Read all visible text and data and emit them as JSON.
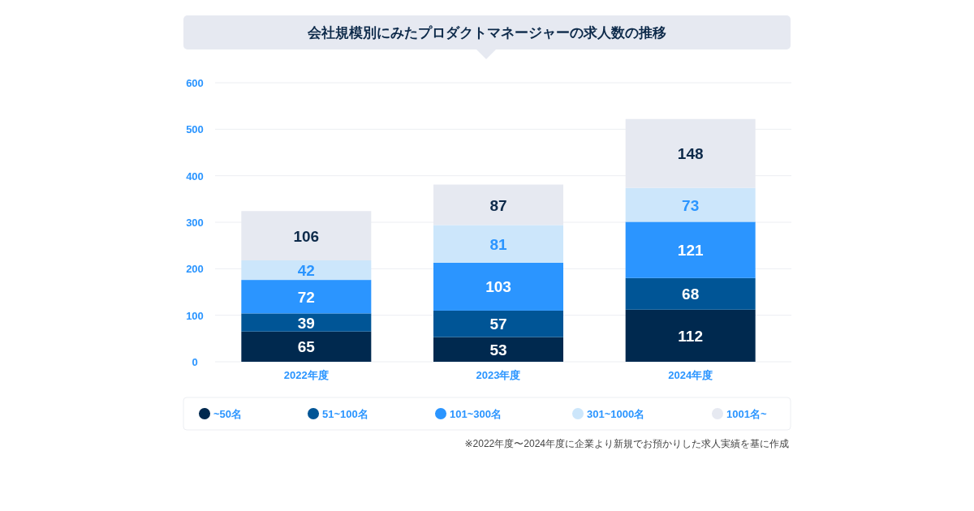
{
  "chart_data": {
    "type": "bar",
    "title": "会社規模別にみたプロダクトマネージャーの求人数の推移",
    "categories": [
      "2022年度",
      "2023年度",
      "2024年度"
    ],
    "stacked": true,
    "data_labels": true,
    "grid": "y",
    "legend": "bottom",
    "ylim": [
      0,
      600
    ],
    "yticks": [
      0,
      100,
      200,
      300,
      400,
      500,
      600
    ],
    "series": [
      {
        "name": "~50名",
        "color": "#00294f",
        "values": [
          65,
          53,
          112
        ]
      },
      {
        "name": "51~100名",
        "color": "#005596",
        "values": [
          39,
          57,
          68
        ]
      },
      {
        "name": "101~300名",
        "color": "#2b95ff",
        "values": [
          72,
          103,
          121
        ]
      },
      {
        "name": "301~1000名",
        "color": "#cce6fb",
        "values": [
          42,
          81,
          73
        ]
      },
      {
        "name": "1001名~",
        "color": "#e6e9f1",
        "values": [
          106,
          87,
          148
        ]
      }
    ],
    "annotations": [
      "※2022年度〜2024年度に企業より新規でお預かりした求人実績を基に作成"
    ]
  }
}
